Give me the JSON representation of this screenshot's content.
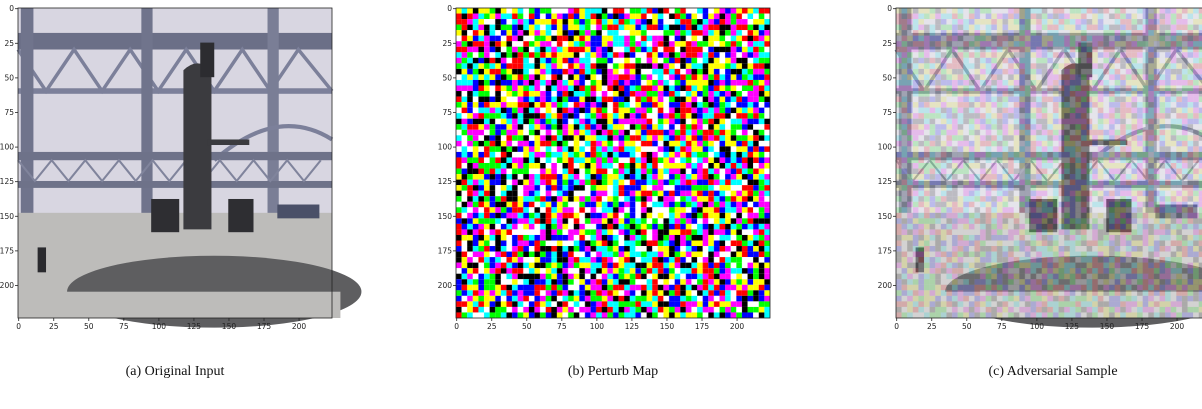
{
  "figure": {
    "axes": {
      "xlim": [
        -0.5,
        223.5
      ],
      "ylim": [
        223.5,
        -0.5
      ],
      "xticks": [
        0,
        25,
        50,
        75,
        100,
        125,
        150,
        175,
        200
      ],
      "yticks": [
        0,
        25,
        50,
        75,
        100,
        125,
        150,
        175,
        200
      ]
    },
    "panels": [
      {
        "caption": "(a) Original Input"
      },
      {
        "caption": "(b) Perturb Map"
      },
      {
        "caption": "(c) Adversarial Sample"
      }
    ]
  }
}
